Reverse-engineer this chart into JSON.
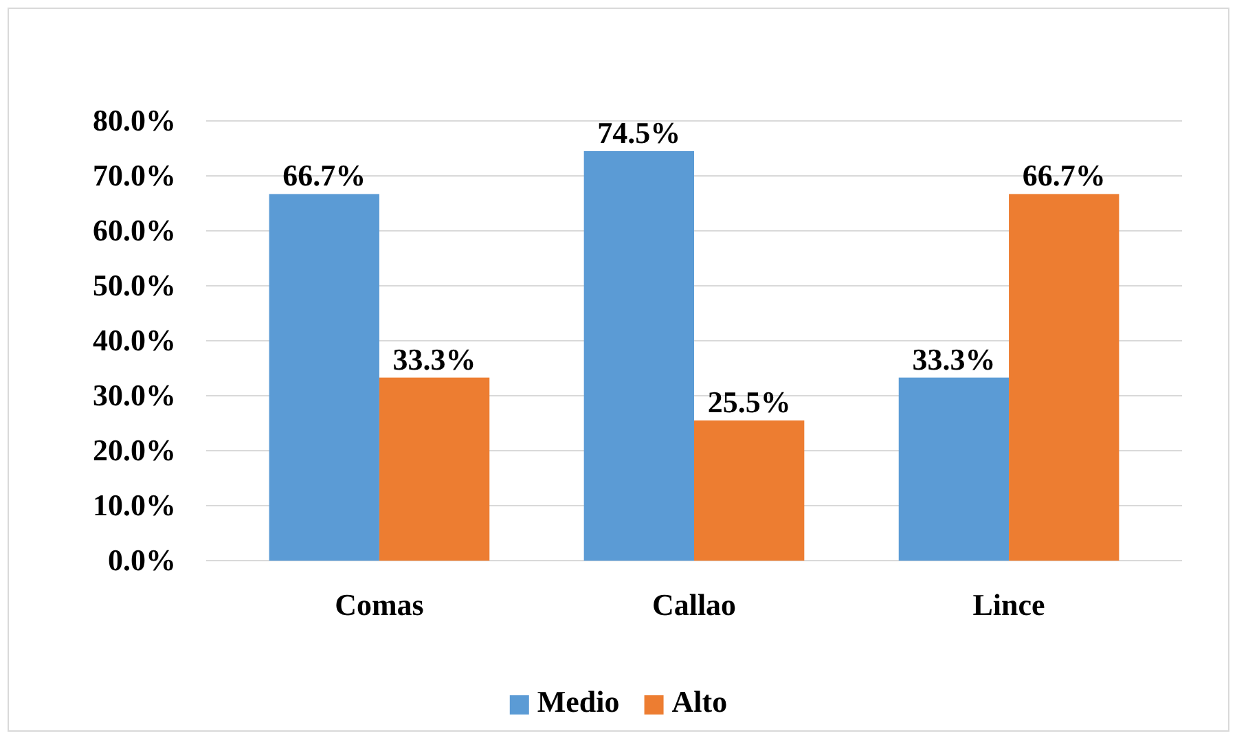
{
  "chart_data": {
    "type": "bar",
    "categories": [
      "Comas",
      "Callao",
      "Lince"
    ],
    "series": [
      {
        "name": "Medio",
        "color": "#5b9bd5",
        "values": [
          66.7,
          74.5,
          33.3
        ],
        "value_labels": [
          "66.7%",
          "74.5%",
          "33.3%"
        ]
      },
      {
        "name": "Alto",
        "color": "#ed7d31",
        "values": [
          33.3,
          25.5,
          66.7
        ],
        "value_labels": [
          "33.3%",
          "25.5%",
          "66.7%"
        ]
      }
    ],
    "ylim": [
      0,
      80
    ],
    "yticks": [
      {
        "value": 0,
        "label": "0.0%"
      },
      {
        "value": 10,
        "label": "10.0%"
      },
      {
        "value": 20,
        "label": "20.0%"
      },
      {
        "value": 30,
        "label": "30.0%"
      },
      {
        "value": 40,
        "label": "40.0%"
      },
      {
        "value": 50,
        "label": "50.0%"
      },
      {
        "value": 60,
        "label": "60.0%"
      },
      {
        "value": 70,
        "label": "70.0%"
      },
      {
        "value": 80,
        "label": "80.0%"
      }
    ],
    "grid": "y",
    "legend": "bottom"
  }
}
